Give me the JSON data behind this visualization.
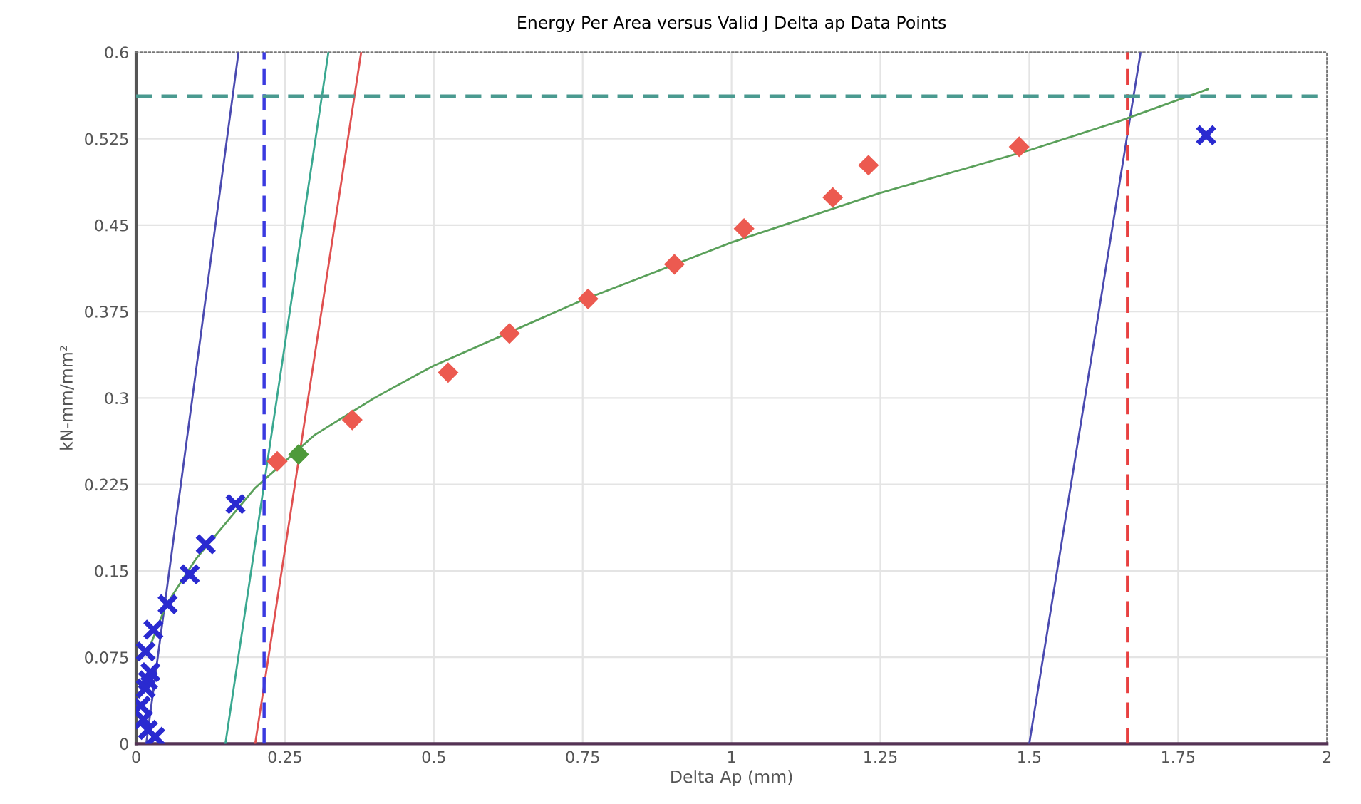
{
  "chart_data": {
    "type": "scatter",
    "title": "Energy Per Area versus Valid J Delta ap Data Points",
    "xlabel": "Delta Ap (mm)",
    "ylabel": "kN-mm/mm²",
    "xlim": [
      0,
      2
    ],
    "ylim": [
      0,
      0.6
    ],
    "xticks": [
      0,
      0.25,
      0.5,
      0.75,
      1,
      1.25,
      1.5,
      1.75,
      2
    ],
    "yticks": [
      0,
      0.075,
      0.15,
      0.225,
      0.3,
      0.375,
      0.45,
      0.525,
      0.6
    ],
    "grid": true,
    "legend": false,
    "series": [
      {
        "type": "line",
        "color": "#4a4ab0",
        "marker": "none",
        "line_style": "solid",
        "x": [
          0.017,
          0.172
        ],
        "values": [
          0,
          0.6
        ]
      },
      {
        "type": "line",
        "color": "#3aa890",
        "marker": "none",
        "line_style": "solid",
        "x": [
          0.15,
          0.323
        ],
        "values": [
          0,
          0.6
        ]
      },
      {
        "type": "line",
        "color": "#e05050",
        "marker": "none",
        "line_style": "solid",
        "x": [
          0.2,
          0.378
        ],
        "values": [
          0,
          0.6
        ]
      },
      {
        "type": "line",
        "color": "#4a4ab0",
        "marker": "none",
        "line_style": "solid",
        "x": [
          1.5,
          1.687
        ],
        "values": [
          0,
          0.6
        ]
      },
      {
        "type": "line",
        "color": "#5aa05a",
        "marker": "none",
        "line_style": "solid",
        "x": [
          0.02,
          0.05,
          0.1,
          0.2,
          0.3,
          0.4,
          0.5,
          0.75,
          1.0,
          1.25,
          1.5,
          1.65,
          1.8
        ],
        "values": [
          0.08,
          0.12,
          0.16,
          0.222,
          0.268,
          0.3,
          0.328,
          0.385,
          0.435,
          0.478,
          0.515,
          0.54,
          0.568
        ]
      },
      {
        "color": "#2a2ad0",
        "marker": "cross",
        "x": [
          0.167,
          0.117,
          0.09,
          0.053,
          0.029,
          0.016,
          0.024,
          0.02,
          0.016,
          0.008,
          0.012,
          0.02,
          0.032,
          1.797
        ],
        "values": [
          0.208,
          0.173,
          0.147,
          0.121,
          0.099,
          0.08,
          0.062,
          0.055,
          0.048,
          0.033,
          0.021,
          0.012,
          0.006,
          0.528
        ]
      },
      {
        "color": "#ec5a50",
        "marker": "diamond",
        "x": [
          0.237,
          0.363,
          0.524,
          0.627,
          0.759,
          0.904,
          1.021,
          1.17,
          1.23,
          1.483
        ],
        "values": [
          0.245,
          0.281,
          0.322,
          0.356,
          0.386,
          0.416,
          0.447,
          0.474,
          0.502,
          0.518
        ]
      },
      {
        "color": "#4e9a3a",
        "marker": "diamond",
        "x": [
          0.273
        ],
        "values": [
          0.251
        ]
      }
    ],
    "ref_lines": [
      {
        "axis": "x",
        "value": 0.215,
        "color": "#3a3ae0",
        "line_style": "dashed"
      },
      {
        "axis": "x",
        "value": 1.665,
        "color": "#e84040",
        "line_style": "dashed"
      },
      {
        "axis": "y",
        "value": 0.562,
        "color": "#4a9a90",
        "line_style": "dashed"
      }
    ]
  }
}
